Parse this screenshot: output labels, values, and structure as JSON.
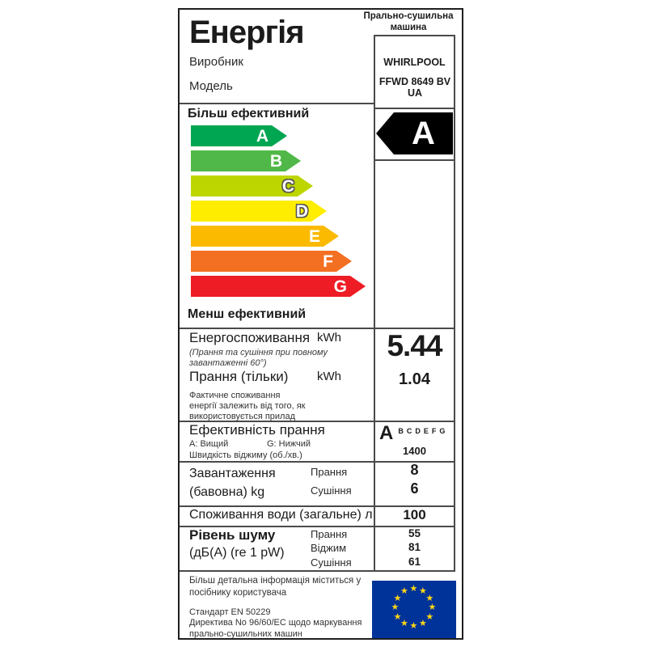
{
  "header": {
    "title": "Енергія",
    "appliance_type": "Прально-сушильна\nмашина",
    "manufacturer_label": "Виробник",
    "manufacturer": "WHIRLPOOL",
    "model_label": "Модель",
    "model": "FFWD 8649 BV\nUA"
  },
  "scale": {
    "more_label": "Більш ефективний",
    "less_label": "Менш ефективний",
    "grades": [
      {
        "grade": "A",
        "color": "#00a651"
      },
      {
        "grade": "B",
        "color": "#50b848"
      },
      {
        "grade": "C",
        "color": "#bed600"
      },
      {
        "grade": "D",
        "color": "#ffed00"
      },
      {
        "grade": "E",
        "color": "#fbba00"
      },
      {
        "grade": "F",
        "color": "#f36f21"
      },
      {
        "grade": "G",
        "color": "#ee1c25"
      }
    ],
    "indicator": {
      "grade": "A",
      "bg": "#000000",
      "fg": "#ffffff"
    }
  },
  "energy": {
    "row1_label": "Енергоспоживання",
    "row1_unit": "kWh",
    "row1_value": "5.44",
    "row1_note": "(Прання та сушіння при повному\nзавантаженні 60°)",
    "row2_label": "Прання (тільки)",
    "row2_unit": "kWh",
    "row2_value": "1.04",
    "footnote": "Фактичне споживання\nенергії залежить від того, як\nвикористовується прилад"
  },
  "efficiency": {
    "label": "Ефективність прання",
    "high_note": "A: Вищий",
    "low_note": "G: Нижчий",
    "spin_label": "Швидкість віджиму (об./хв.)",
    "grade": "A",
    "other_grades": "BCDEFG",
    "spin_value": "1400"
  },
  "load": {
    "label": "Завантаження\n(бавовна) kg",
    "rows": [
      {
        "name": "Прання",
        "value": "8"
      },
      {
        "name": "Сушіння",
        "value": "6"
      }
    ]
  },
  "water": {
    "label": "Споживання води (загальне) л",
    "value": "100"
  },
  "noise": {
    "label": "Рівень шуму",
    "unit_label": "(дБ(А) (re 1 pW)",
    "rows": [
      {
        "name": "Прання",
        "value": "55"
      },
      {
        "name": "Віджим",
        "value": "81"
      },
      {
        "name": "Сушіння",
        "value": "61"
      }
    ]
  },
  "footer": {
    "info": "Більш детальна інформація міститься у\nпосібнику користувача",
    "standard": "Стандарт EN 50229",
    "directive": "Директива  No 96/60/EC щодо маркування\nпрально-сушильних машин",
    "flag_bg": "#003399",
    "flag_star": "#ffd617"
  }
}
